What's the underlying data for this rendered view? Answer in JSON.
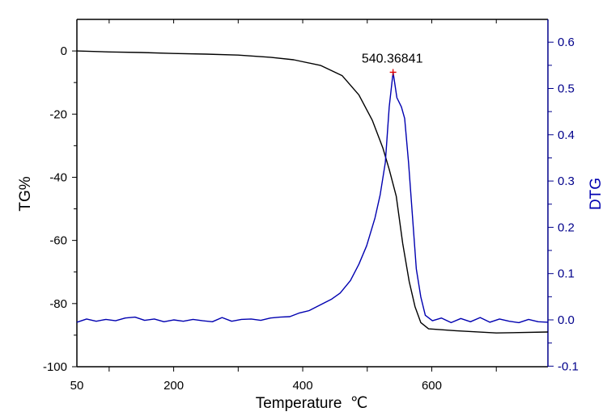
{
  "chart_data": {
    "type": "line",
    "title": "",
    "xlabel": "Temperature  ℃",
    "ylabel_left": "TG%",
    "ylabel_right": "DTG",
    "xlim": [
      50,
      780
    ],
    "ylim_left": [
      -100,
      10
    ],
    "ylim_right": [
      -0.1,
      0.65
    ],
    "x_ticks": [
      50,
      200,
      400,
      600
    ],
    "y_ticks_left": [
      0,
      -20,
      -40,
      -60,
      -80,
      -100
    ],
    "y_ticks_right": [
      0.6,
      0.5,
      0.4,
      0.3,
      0.2,
      0.1,
      0.0,
      -0.1
    ],
    "grid": false,
    "colors": {
      "tg": "#000000",
      "dtg": "#0000b0",
      "marker": "#e00000",
      "right_axis": "#00008b"
    },
    "series": [
      {
        "axis": "left",
        "x": [
          50,
          100,
          150,
          200,
          250,
          300,
          350,
          386,
          428,
          461,
          487,
          508,
          524,
          534,
          545,
          555,
          565,
          574,
          583,
          595,
          637,
          700,
          780
        ],
        "y": [
          0,
          -0.3,
          -0.5,
          -0.8,
          -1.0,
          -1.3,
          -2.0,
          -2.8,
          -4.6,
          -7.8,
          -13.9,
          -22,
          -30.6,
          -37.5,
          -46,
          -61,
          -73,
          -81,
          -86,
          -88,
          -88.6,
          -89.3,
          -89
        ]
      },
      {
        "axis": "right",
        "x": [
          50,
          65,
          80,
          95,
          110,
          125,
          140,
          155,
          170,
          185,
          200,
          215,
          230,
          245,
          260,
          275,
          290,
          305,
          320,
          335,
          350,
          365,
          380,
          395,
          410,
          428,
          445,
          458,
          474,
          487,
          499,
          512,
          520,
          528,
          534,
          540,
          546,
          553,
          558,
          564,
          570,
          576,
          583,
          590,
          601,
          615,
          630,
          645,
          660,
          675,
          690,
          705,
          720,
          735,
          750,
          765,
          780
        ],
        "y": [
          -0.005,
          0.002,
          -0.003,
          0.001,
          -0.002,
          0.004,
          0.006,
          -0.001,
          0.002,
          -0.004,
          0.0,
          -0.003,
          0.001,
          -0.002,
          -0.004,
          0.005,
          -0.003,
          0.001,
          0.002,
          -0.001,
          0.004,
          0.006,
          0.007,
          0.015,
          0.02,
          0.033,
          0.045,
          0.058,
          0.085,
          0.12,
          0.16,
          0.22,
          0.27,
          0.34,
          0.46,
          0.535,
          0.48,
          0.46,
          0.435,
          0.34,
          0.225,
          0.11,
          0.05,
          0.01,
          -0.002,
          0.004,
          -0.006,
          0.003,
          -0.004,
          0.005,
          -0.005,
          0.002,
          -0.003,
          -0.006,
          0.001,
          -0.004,
          -0.005
        ]
      }
    ],
    "annotations": [
      {
        "text": "540.36841",
        "x": 540,
        "y": 0.535,
        "axis": "right"
      }
    ]
  }
}
